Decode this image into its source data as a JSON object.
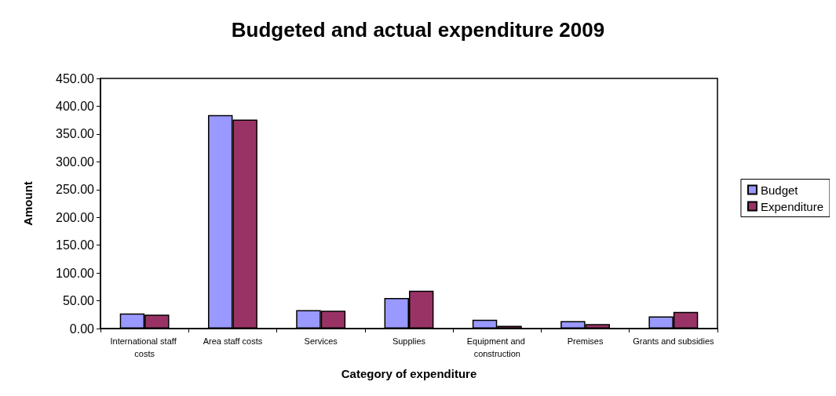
{
  "chart_data": {
    "type": "bar",
    "title": "Budgeted and actual expenditure 2009",
    "xlabel": "Category of expenditure",
    "ylabel": "Amount",
    "categories": [
      "International staff costs",
      "Area staff costs",
      "Services",
      "Supplies",
      "Equipment and construction",
      "Premises",
      "Grants and subsidies"
    ],
    "series": [
      {
        "name": "Budget",
        "color": "#9999ff",
        "values": [
          27,
          384,
          33,
          55,
          16,
          13.5,
          22
        ]
      },
      {
        "name": "Expenditure",
        "color": "#993366",
        "values": [
          25,
          376,
          32,
          68,
          5,
          8,
          30
        ]
      }
    ],
    "ylim": [
      0,
      450
    ],
    "yticks": [
      {
        "value": 0,
        "label": "0.00"
      },
      {
        "value": 50,
        "label": "50.00"
      },
      {
        "value": 100,
        "label": "100.00"
      },
      {
        "value": 150,
        "label": "150.00"
      },
      {
        "value": 200,
        "label": "200.00"
      },
      {
        "value": 250,
        "label": "250.00"
      },
      {
        "value": 300,
        "label": "300.00"
      },
      {
        "value": 350,
        "label": "350.00"
      },
      {
        "value": 400,
        "label": "400.00"
      },
      {
        "value": 450,
        "label": "450.00"
      }
    ],
    "grid": false,
    "legend": "right"
  }
}
